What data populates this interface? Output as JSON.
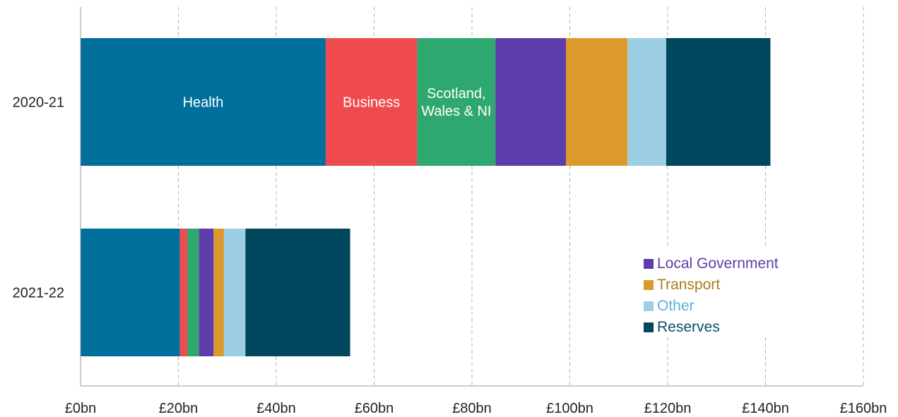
{
  "chart_data": {
    "type": "bar",
    "orientation": "horizontal",
    "stacked": true,
    "title": "",
    "xlabel": "",
    "ylabel": "",
    "xlim": [
      0,
      160
    ],
    "x_ticks": [
      0,
      20,
      40,
      60,
      80,
      100,
      120,
      140,
      160
    ],
    "x_tick_labels": [
      "£0bn",
      "£20bn",
      "£40bn",
      "£60bn",
      "£80bn",
      "£100bn",
      "£120bn",
      "£140bn",
      "£160bn"
    ],
    "grid": "vertical dashed",
    "categories": [
      "2020-21",
      "2021-22"
    ],
    "series": [
      {
        "name": "Health",
        "values": [
          50.1,
          20.3
        ],
        "color": "#006f9b",
        "inline_label": "Health"
      },
      {
        "name": "Business",
        "values": [
          18.7,
          1.5
        ],
        "color": "#ef4b4f",
        "inline_label": "Business"
      },
      {
        "name": "Scotland, Wales & NI",
        "values": [
          16.0,
          2.4
        ],
        "color": "#2fa86f",
        "inline_label_lines": [
          "Scotland,",
          "Wales & NI"
        ]
      },
      {
        "name": "Local Government",
        "values": [
          14.4,
          3.0
        ],
        "color": "#5e3cac"
      },
      {
        "name": "Transport",
        "values": [
          12.6,
          2.1
        ],
        "color": "#dc9a2a"
      },
      {
        "name": "Other",
        "values": [
          7.9,
          4.4
        ],
        "color": "#9ccfe4"
      },
      {
        "name": "Reserves",
        "values": [
          21.3,
          21.4
        ],
        "color": "#00465c"
      }
    ],
    "legend": {
      "placement": "bottom-right",
      "entries": [
        {
          "label": "Local Government",
          "color": "#5e3cac",
          "text_color": "#5e3cac"
        },
        {
          "label": "Transport",
          "color": "#dc9a2a",
          "text_color": "#b07a1c"
        },
        {
          "label": "Other",
          "color": "#9ccfe4",
          "text_color": "#5bb3d8"
        },
        {
          "label": "Reserves",
          "color": "#00465c",
          "text_color": "#0a4f66"
        }
      ]
    }
  }
}
